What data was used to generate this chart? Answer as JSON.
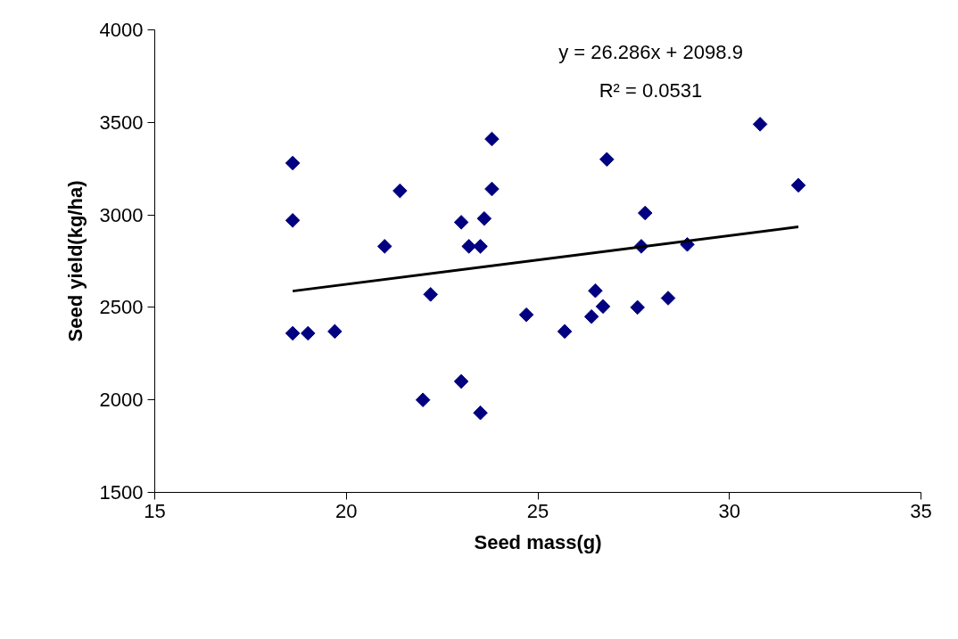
{
  "chart_data": {
    "type": "scatter",
    "xlabel": "Seed mass(g)",
    "ylabel": "Seed yield(kg/ha)",
    "xlim": [
      15,
      35
    ],
    "xticks": [
      15,
      20,
      25,
      30,
      35
    ],
    "ylim": [
      1500,
      4000
    ],
    "yticks": [
      1500,
      2000,
      2500,
      3000,
      3500,
      4000
    ],
    "grid": false,
    "series": [
      {
        "color": "#000080",
        "marker": "diamond",
        "x": [
          18.6,
          18.6,
          18.6,
          19.0,
          19.7,
          21.0,
          21.4,
          22.2,
          22.0,
          23.0,
          23.0,
          23.2,
          23.5,
          23.5,
          23.6,
          23.8,
          23.8,
          24.7,
          25.7,
          26.4,
          26.5,
          26.7,
          26.8,
          27.6,
          27.7,
          27.8,
          28.4,
          28.9,
          30.8,
          31.8
        ],
        "values": [
          3280,
          2970,
          2360,
          2360,
          2370,
          2830,
          3130,
          2570,
          2000,
          2100,
          2960,
          2830,
          2830,
          1930,
          2980,
          3410,
          3140,
          2460,
          2370,
          2450,
          2590,
          2505,
          3300,
          2500,
          2830,
          3010,
          2550,
          2840,
          3490,
          3160
        ]
      },
      {
        "type": "line",
        "marker": "none",
        "color": "#000000",
        "x": [
          18.6,
          31.8
        ],
        "values": [
          2588,
          2935
        ]
      }
    ],
    "annotations": [
      "y = 26.286x + 2098.9",
      "R² = 0.0531"
    ]
  }
}
